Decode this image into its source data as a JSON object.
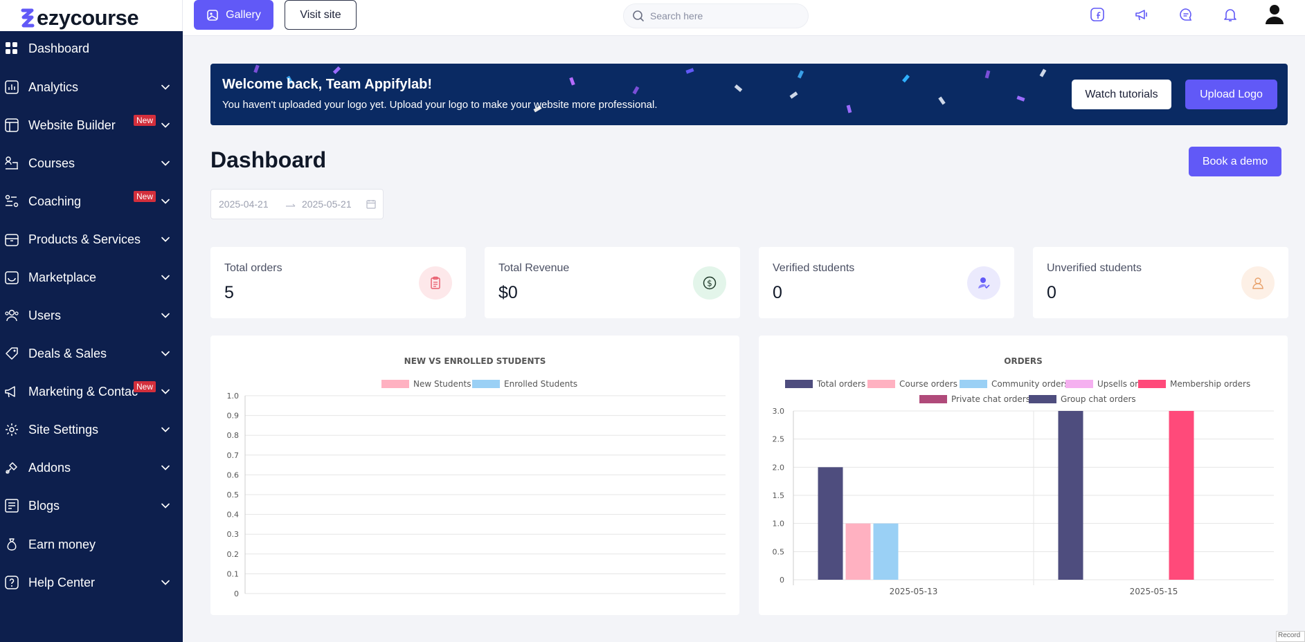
{
  "brand": {
    "name": "ezycourse",
    "accent": "#6159f7",
    "sidebar_bg": "#0d1f4d"
  },
  "header": {
    "gallery_label": "Gallery",
    "visit_label": "Visit site",
    "search_placeholder": "Search here",
    "icons": [
      "facebook-icon",
      "megaphone-icon",
      "chat-icon",
      "bell-icon",
      "user-avatar-icon"
    ]
  },
  "sidebar": {
    "items": [
      {
        "label": "Dashboard",
        "icon": "grid-icon",
        "chevron": false,
        "badge": ""
      },
      {
        "label": "Analytics",
        "icon": "analytics-icon",
        "chevron": true,
        "badge": ""
      },
      {
        "label": "Website Builder",
        "icon": "layout-icon",
        "chevron": true,
        "badge": "New"
      },
      {
        "label": "Courses",
        "icon": "courses-icon",
        "chevron": true,
        "badge": ""
      },
      {
        "label": "Coaching",
        "icon": "coaching-icon",
        "chevron": true,
        "badge": "New"
      },
      {
        "label": "Products & Services",
        "icon": "box-icon",
        "chevron": true,
        "badge": ""
      },
      {
        "label": "Marketplace",
        "icon": "store-icon",
        "chevron": true,
        "badge": ""
      },
      {
        "label": "Users",
        "icon": "users-icon",
        "chevron": true,
        "badge": ""
      },
      {
        "label": "Deals & Sales",
        "icon": "tag-icon",
        "chevron": true,
        "badge": ""
      },
      {
        "label": "Marketing & Contac",
        "icon": "megaphone-icon",
        "chevron": true,
        "badge": "New"
      },
      {
        "label": "Site Settings",
        "icon": "gear-icon",
        "chevron": true,
        "badge": ""
      },
      {
        "label": "Addons",
        "icon": "addons-icon",
        "chevron": true,
        "badge": ""
      },
      {
        "label": "Blogs",
        "icon": "blog-icon",
        "chevron": true,
        "badge": ""
      },
      {
        "label": "Earn money",
        "icon": "money-bag-icon",
        "chevron": false,
        "badge": ""
      },
      {
        "label": "Help Center",
        "icon": "help-icon",
        "chevron": true,
        "badge": ""
      }
    ]
  },
  "banner": {
    "title": "Welcome back, Team Appifylab!",
    "subtitle": "You haven't uploaded your logo yet. Upload your logo to make your website more professional.",
    "watch_label": "Watch tutorials",
    "upload_label": "Upload Logo"
  },
  "page": {
    "title": "Dashboard",
    "demo_label": "Book a demo"
  },
  "date_range": {
    "start": "2025-04-21",
    "end": "2025-05-21"
  },
  "stats": [
    {
      "label": "Total orders",
      "value": "5",
      "icon": "clipboard-icon",
      "color": "#e85a6b",
      "bg": "#fde8ea"
    },
    {
      "label": "Total Revenue",
      "value": "$0",
      "icon": "dollar-icon",
      "color": "#1f5a3a",
      "bg": "#e3f5ea"
    },
    {
      "label": "Verified students",
      "value": "0",
      "icon": "verified-student-icon",
      "color": "#6159f7",
      "bg": "#ebeafd"
    },
    {
      "label": "Unverified students",
      "value": "0",
      "icon": "student-icon",
      "color": "#e8a16b",
      "bg": "#fdf0e6"
    }
  ],
  "chart_data": [
    {
      "type": "line",
      "title": "NEW VS ENROLLED STUDENTS",
      "series": [
        {
          "name": "New Students",
          "color": "#ffb1c1",
          "values": []
        },
        {
          "name": "Enrolled Students",
          "color": "#9ad0f5",
          "values": []
        }
      ],
      "y_ticks": [
        "1.0",
        "0.9",
        "0.8",
        "0.7",
        "0.6",
        "0.5",
        "0.4",
        "0.3",
        "0.2",
        "0.1",
        "0"
      ],
      "ylim": [
        0,
        1
      ]
    },
    {
      "type": "bar",
      "title": "ORDERS",
      "categories": [
        "2025-05-13",
        "2025-05-15"
      ],
      "series": [
        {
          "name": "Total orders",
          "color": "#4e4d7e",
          "values": [
            2,
            3
          ]
        },
        {
          "name": "Course orders",
          "color": "#ffb1c1",
          "values": [
            1,
            0
          ]
        },
        {
          "name": "Community orders",
          "color": "#9ad0f5",
          "values": [
            1,
            0
          ]
        },
        {
          "name": "Upsells orders",
          "color": "#f5b0f0",
          "values": [
            0,
            0
          ]
        },
        {
          "name": "Membership orders",
          "color": "#ff4a7a",
          "values": [
            0,
            3
          ]
        },
        {
          "name": "Private chat orders",
          "color": "#b04a7a",
          "values": [
            0,
            0
          ]
        },
        {
          "name": "Group chat orders",
          "color": "#4e4d7e",
          "values": [
            0,
            0
          ]
        }
      ],
      "y_ticks": [
        "3.0",
        "2.5",
        "2.0",
        "1.5",
        "1.0",
        "0.5",
        "0"
      ],
      "ylim": [
        0,
        3
      ]
    }
  ],
  "footer": {
    "record_label": "Record"
  }
}
